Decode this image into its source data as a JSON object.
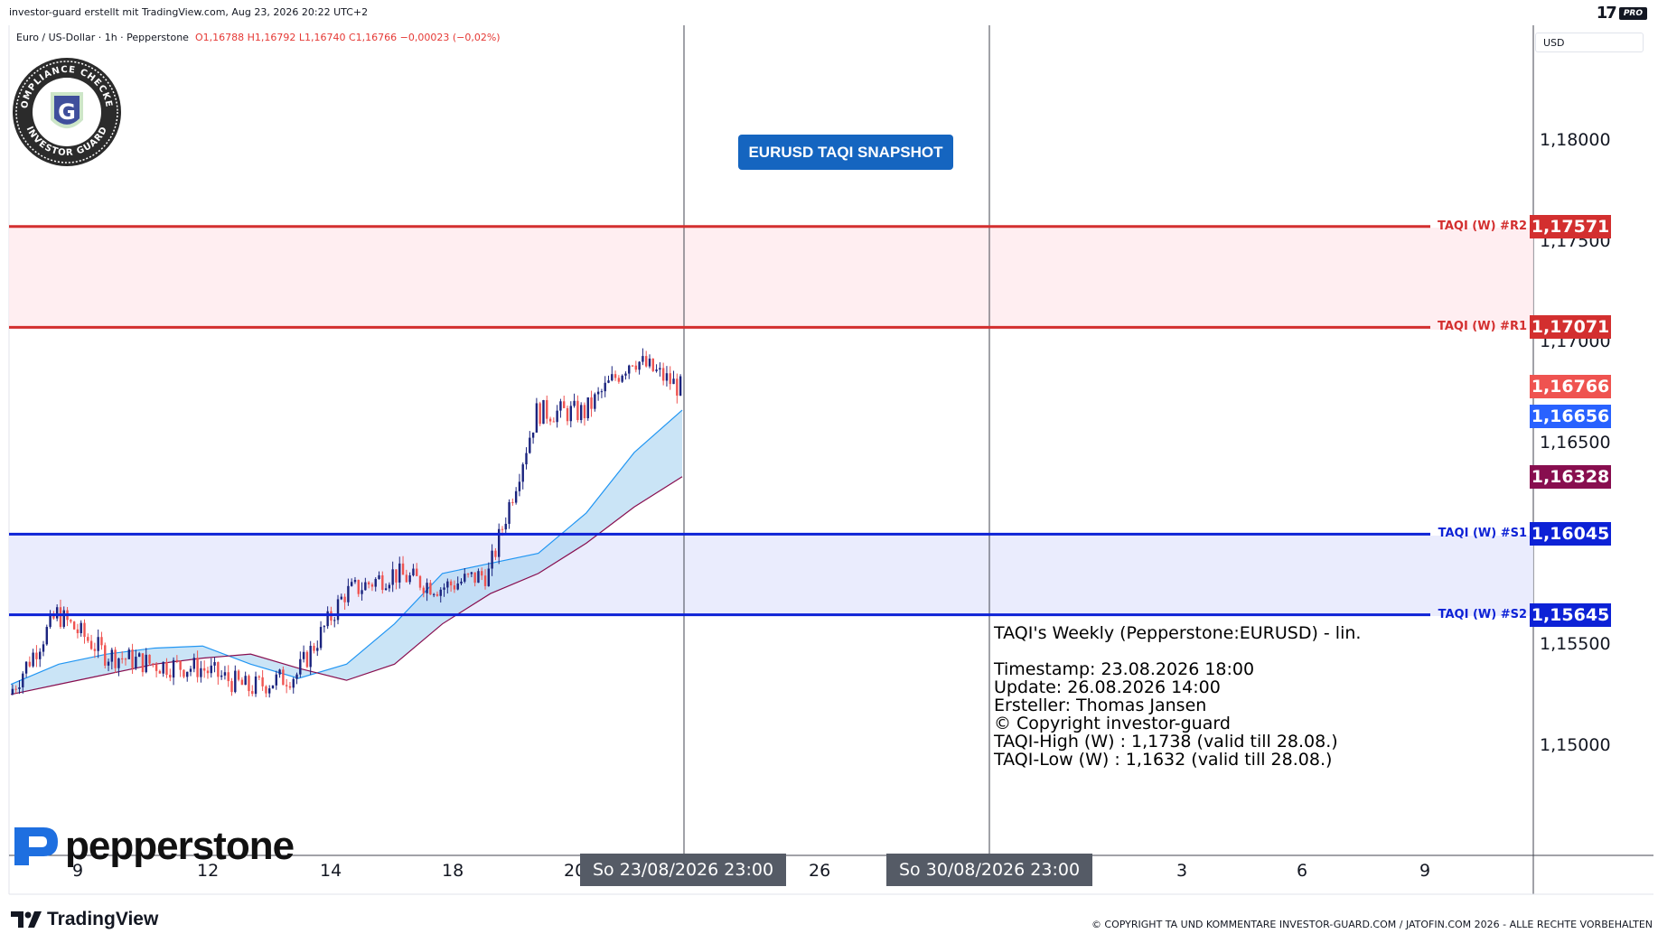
{
  "header": {
    "attribution": "investor-guard erstellt mit TradingView.com, Aug 23, 2026 20:22 UTC+2",
    "logo_text": "17",
    "pro_badge": "PRO"
  },
  "symbol": {
    "name": "Euro / US-Dollar · 1h · Pepperstone",
    "ohlc": "O1,16788 H1,16792 L1,16740 C1,16766 −0,00023 (−0,02%)"
  },
  "currency": "USD",
  "badge": {
    "text_top": "COMPLIANCE CHECKED",
    "text_bottom": "INVESTOR GUARD",
    "letter": "G"
  },
  "snapshot_button": "EURUSD TAQI SNAPSHOT",
  "info_lines": [
    "TAQI's Weekly (Pepperstone:EURUSD) - lin.",
    "",
    "Timestamp: 23.08.2026 18:00",
    "Update: 26.08.2026 14:00",
    "Ersteller: Thomas Jansen",
    "© Copyright investor-guard",
    "TAQI-High (W) : 1,1738 (valid till 28.08.)",
    "TAQI-Low (W) : 1,1632 (valid till 28.08.)"
  ],
  "levels": [
    {
      "label": "TAQI (W) #R2",
      "price": "1,17571",
      "value": 1.17571,
      "color": "#d32f2f"
    },
    {
      "label": "TAQI (W) #R1",
      "price": "1,17071",
      "value": 1.17071,
      "color": "#d32f2f"
    },
    {
      "label": "TAQI (W) #S1",
      "price": "1,16045",
      "value": 1.16045,
      "color": "#0d22d6"
    },
    {
      "label": "TAQI (W) #S2",
      "price": "1,15645",
      "value": 1.15645,
      "color": "#0d22d6"
    }
  ],
  "price_tags": [
    {
      "price": "1,16766",
      "value": 1.16766,
      "color": "#ef5350"
    },
    {
      "price": "1,16656",
      "value": 1.16656,
      "color": "#2962ff"
    },
    {
      "price": "1,16328",
      "value": 1.16328,
      "color": "#880e4f"
    }
  ],
  "axis_prices": [
    {
      "label": "1,18000",
      "value": 1.18
    },
    {
      "label": "1,17500",
      "value": 1.175
    },
    {
      "label": "1,17000",
      "value": 1.17
    },
    {
      "label": "1,16500",
      "value": 1.165
    },
    {
      "label": "1,15500",
      "value": 1.155
    },
    {
      "label": "1,15000",
      "value": 1.15
    }
  ],
  "x_axis": {
    "labels": [
      "9",
      "12",
      "14",
      "18",
      "20",
      "26",
      "3",
      "6",
      "9"
    ],
    "markers": [
      "So 23/08/2026   23:00",
      "So 30/08/2026   23:00"
    ]
  },
  "footer": {
    "tv_brand": "TradingView",
    "pepperstone": "pepperstone",
    "copyright": "© COPYRIGHT TA UND KOMMENTARE INVESTOR-GUARD.COM / JATOFIN.COM 2026 - ALLE RECHTE VORBEHALTEN"
  },
  "chart_data": {
    "type": "line",
    "title": "Euro / US-Dollar · 1h · Pepperstone",
    "ylim": [
      1.1465,
      1.1828
    ],
    "series": [
      {
        "x": [
          "9",
          "10",
          "11",
          "12",
          "13",
          "14",
          "15",
          "16",
          "17",
          "18",
          "19",
          "20",
          "21",
          "22",
          "23"
        ],
        "values": [
          1.1525,
          1.1565,
          1.1545,
          1.154,
          1.1538,
          1.1528,
          1.1535,
          1.1575,
          1.1585,
          1.1578,
          1.1585,
          1.1665,
          1.1665,
          1.1692,
          1.1677
        ]
      },
      {
        "x": [
          "9",
          "10",
          "11",
          "12",
          "13",
          "14",
          "15",
          "16",
          "17",
          "18",
          "19",
          "20",
          "21",
          "22",
          "23"
        ],
        "values": [
          1.153,
          1.154,
          1.1545,
          1.1548,
          1.1549,
          1.154,
          1.1533,
          1.154,
          1.156,
          1.1585,
          1.159,
          1.1595,
          1.1615,
          1.1645,
          1.1666
        ]
      },
      {
        "x": [
          "9",
          "10",
          "11",
          "12",
          "13",
          "14",
          "15",
          "16",
          "17",
          "18",
          "19",
          "20",
          "21",
          "22",
          "23"
        ],
        "values": [
          1.1525,
          1.153,
          1.1535,
          1.154,
          1.1543,
          1.1545,
          1.1538,
          1.1532,
          1.154,
          1.156,
          1.1575,
          1.1585,
          1.16,
          1.1618,
          1.1633
        ]
      }
    ]
  }
}
